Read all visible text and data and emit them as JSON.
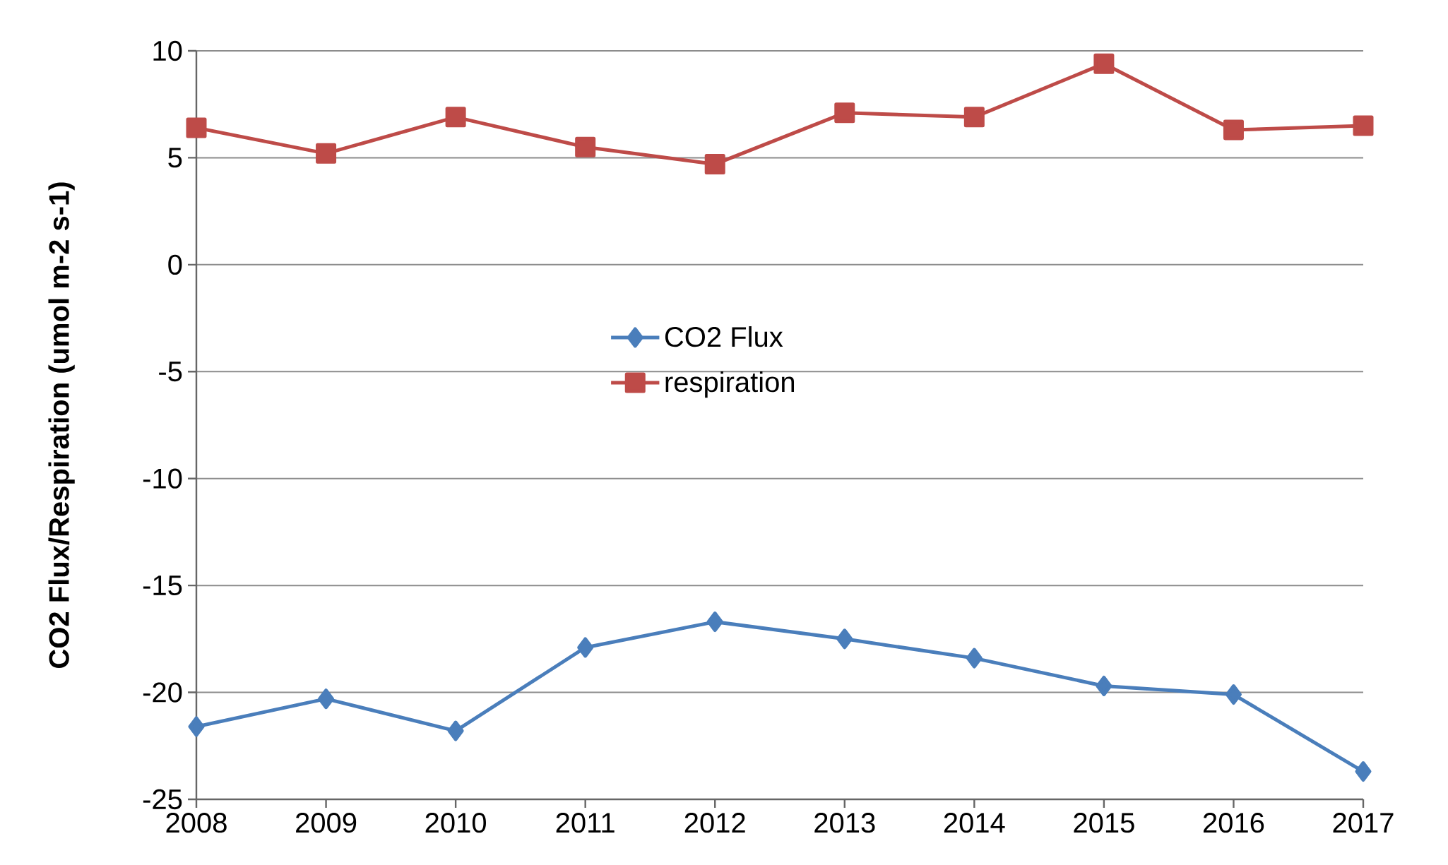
{
  "chart_data": {
    "type": "line",
    "ylabel": "CO2 Flux/Respiration (umol m-2 s-1)",
    "categories": [
      "2008",
      "2009",
      "2010",
      "2011",
      "2012",
      "2013",
      "2014",
      "2015",
      "2016",
      "2017"
    ],
    "series": [
      {
        "name": "CO2 Flux",
        "color": "#4a7ebb",
        "marker": "diamond",
        "values": [
          -21.6,
          -20.3,
          -21.8,
          -17.9,
          -16.7,
          -17.5,
          -18.4,
          -19.7,
          -20.1,
          -23.7
        ]
      },
      {
        "name": "respiration",
        "color": "#be4b48",
        "marker": "square",
        "values": [
          6.4,
          5.2,
          6.9,
          5.5,
          4.7,
          7.1,
          6.9,
          9.4,
          6.3,
          6.5
        ]
      }
    ],
    "ylim": [
      -25,
      10
    ],
    "yticks": [
      -25,
      -20,
      -15,
      -10,
      -5,
      0,
      5,
      10
    ],
    "grid": "y",
    "legend": "center"
  }
}
